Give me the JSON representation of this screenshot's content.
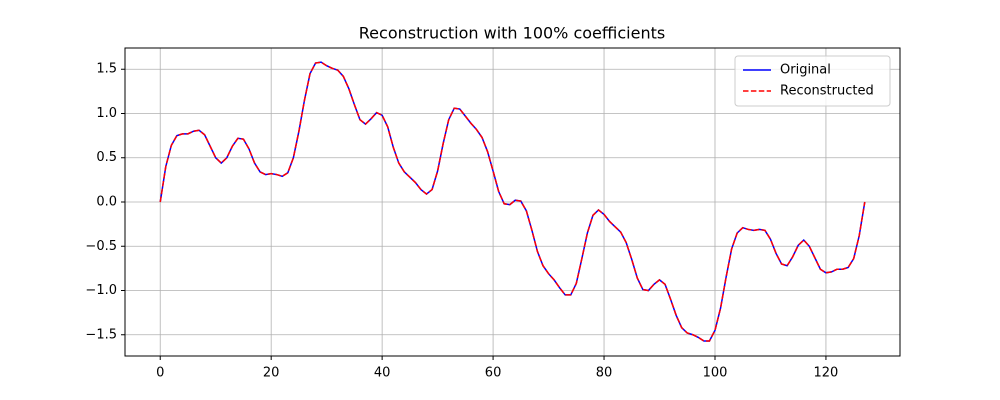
{
  "chart_data": {
    "type": "line",
    "title": "Reconstruction with 100% coefficients",
    "x": [
      0,
      1,
      2,
      3,
      4,
      5,
      6,
      7,
      8,
      9,
      10,
      11,
      12,
      13,
      14,
      15,
      16,
      17,
      18,
      19,
      20,
      21,
      22,
      23,
      24,
      25,
      26,
      27,
      28,
      29,
      30,
      31,
      32,
      33,
      34,
      35,
      36,
      37,
      38,
      39,
      40,
      41,
      42,
      43,
      44,
      45,
      46,
      47,
      48,
      49,
      50,
      51,
      52,
      53,
      54,
      55,
      56,
      57,
      58,
      59,
      60,
      61,
      62,
      63,
      64,
      65,
      66,
      67,
      68,
      69,
      70,
      71,
      72,
      73,
      74,
      75,
      76,
      77,
      78,
      79,
      80,
      81,
      82,
      83,
      84,
      85,
      86,
      87,
      88,
      89,
      90,
      91,
      92,
      93,
      94,
      95,
      96,
      97,
      98,
      99,
      100,
      101,
      102,
      103,
      104,
      105,
      106,
      107,
      108,
      109,
      110,
      111,
      112,
      113,
      114,
      115,
      116,
      117,
      118,
      119,
      120,
      121,
      122,
      123,
      124,
      125,
      126,
      127
    ],
    "series": [
      {
        "name": "Original",
        "color": "#0000ff",
        "linestyle": "solid",
        "values": [
          0,
          0.4,
          0.64,
          0.75,
          0.77,
          0.77,
          0.8,
          0.81,
          0.76,
          0.63,
          0.5,
          0.44,
          0.5,
          0.63,
          0.72,
          0.71,
          0.6,
          0.44,
          0.34,
          0.31,
          0.32,
          0.31,
          0.29,
          0.33,
          0.5,
          0.8,
          1.15,
          1.45,
          1.57,
          1.58,
          1.54,
          1.51,
          1.49,
          1.42,
          1.28,
          1.1,
          0.93,
          0.88,
          0.94,
          1.01,
          0.98,
          0.85,
          0.62,
          0.44,
          0.34,
          0.28,
          0.22,
          0.14,
          0.09,
          0.14,
          0.35,
          0.66,
          0.93,
          1.06,
          1.05,
          0.97,
          0.89,
          0.82,
          0.73,
          0.57,
          0.35,
          0.12,
          -0.02,
          -0.03,
          0.02,
          0.01,
          -0.1,
          -0.32,
          -0.56,
          -0.72,
          -0.81,
          -0.88,
          -0.97,
          -1.05,
          -1.05,
          -0.92,
          -0.64,
          -0.35,
          -0.15,
          -0.09,
          -0.14,
          -0.22,
          -0.28,
          -0.34,
          -0.46,
          -0.65,
          -0.86,
          -0.99,
          -1.0,
          -0.93,
          -0.88,
          -0.93,
          -1.1,
          -1.28,
          -1.42,
          -1.48,
          -1.5,
          -1.53,
          -1.57,
          -1.57,
          -1.45,
          -1.2,
          -0.85,
          -0.53,
          -0.35,
          -0.29,
          -0.31,
          -0.32,
          -0.31,
          -0.32,
          -0.42,
          -0.58,
          -0.7,
          -0.72,
          -0.62,
          -0.49,
          -0.43,
          -0.5,
          -0.63,
          -0.76,
          -0.8,
          -0.79,
          -0.76,
          -0.76,
          -0.74,
          -0.64,
          -0.38,
          0
        ]
      },
      {
        "name": "Reconstructed",
        "color": "#ff0000",
        "linestyle": "dashed",
        "values": [
          0,
          0.4,
          0.64,
          0.75,
          0.77,
          0.77,
          0.8,
          0.81,
          0.76,
          0.63,
          0.5,
          0.44,
          0.5,
          0.63,
          0.72,
          0.71,
          0.6,
          0.44,
          0.34,
          0.31,
          0.32,
          0.31,
          0.29,
          0.33,
          0.5,
          0.8,
          1.15,
          1.45,
          1.57,
          1.58,
          1.54,
          1.51,
          1.49,
          1.42,
          1.28,
          1.1,
          0.93,
          0.88,
          0.94,
          1.01,
          0.98,
          0.85,
          0.62,
          0.44,
          0.34,
          0.28,
          0.22,
          0.14,
          0.09,
          0.14,
          0.35,
          0.66,
          0.93,
          1.06,
          1.05,
          0.97,
          0.89,
          0.82,
          0.73,
          0.57,
          0.35,
          0.12,
          -0.02,
          -0.03,
          0.02,
          0.01,
          -0.1,
          -0.32,
          -0.56,
          -0.72,
          -0.81,
          -0.88,
          -0.97,
          -1.05,
          -1.05,
          -0.92,
          -0.64,
          -0.35,
          -0.15,
          -0.09,
          -0.14,
          -0.22,
          -0.28,
          -0.34,
          -0.46,
          -0.65,
          -0.86,
          -0.99,
          -1.0,
          -0.93,
          -0.88,
          -0.93,
          -1.1,
          -1.28,
          -1.42,
          -1.48,
          -1.5,
          -1.53,
          -1.57,
          -1.57,
          -1.45,
          -1.2,
          -0.85,
          -0.53,
          -0.35,
          -0.29,
          -0.31,
          -0.32,
          -0.31,
          -0.32,
          -0.42,
          -0.58,
          -0.7,
          -0.72,
          -0.62,
          -0.49,
          -0.43,
          -0.5,
          -0.63,
          -0.76,
          -0.8,
          -0.79,
          -0.76,
          -0.76,
          -0.74,
          -0.64,
          -0.38,
          0
        ]
      }
    ],
    "xlim": [
      -6.35,
      133.35
    ],
    "xticks": [
      0,
      20,
      40,
      60,
      80,
      100,
      120
    ],
    "ylim": [
      -1.74,
      1.74
    ],
    "yticks": [
      {
        "value": -1.5,
        "label": "−1.5"
      },
      {
        "value": -1,
        "label": "−1.0"
      },
      {
        "value": -0.5,
        "label": "−0.5"
      },
      {
        "value": 0,
        "label": "0.0"
      },
      {
        "value": 0.5,
        "label": "0.5"
      },
      {
        "value": 1,
        "label": "1.0"
      },
      1.5
    ],
    "grid": true,
    "legend": "upper right"
  }
}
